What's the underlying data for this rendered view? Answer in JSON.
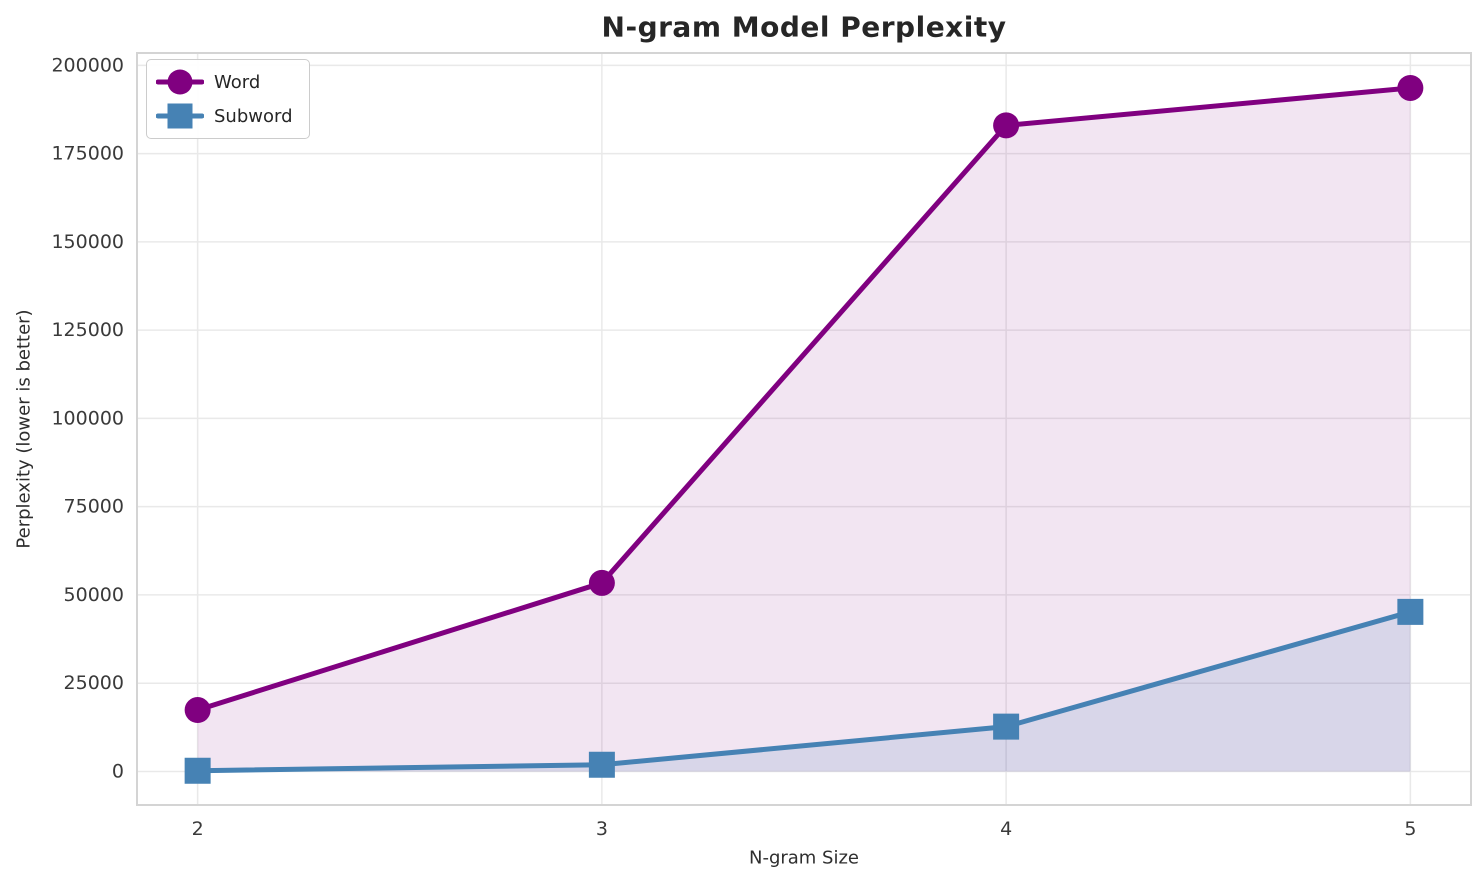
{
  "chart_data": {
    "type": "line",
    "title": "N-gram Model Perplexity",
    "xlabel": "N-gram Size",
    "ylabel": "Perplexity (lower is better)",
    "x": [
      2,
      3,
      4,
      5
    ],
    "series": [
      {
        "name": "Word",
        "marker": "circle",
        "color": "#800080",
        "fill_alpha": 0.1,
        "values": [
          17400,
          53400,
          183000,
          193600
        ]
      },
      {
        "name": "Subword",
        "marker": "square",
        "color": "#4682b4",
        "fill_alpha": 0.15,
        "values": [
          200,
          1900,
          12700,
          45200
        ]
      }
    ],
    "xticks": [
      2,
      3,
      4,
      5
    ],
    "yticks": [
      0,
      25000,
      50000,
      75000,
      100000,
      125000,
      150000,
      175000,
      200000
    ],
    "xlim": [
      1.85,
      5.15
    ],
    "ylim": [
      -9500,
      203500
    ],
    "grid": true,
    "fill_to_zero": true,
    "legend_position": "upper left"
  }
}
